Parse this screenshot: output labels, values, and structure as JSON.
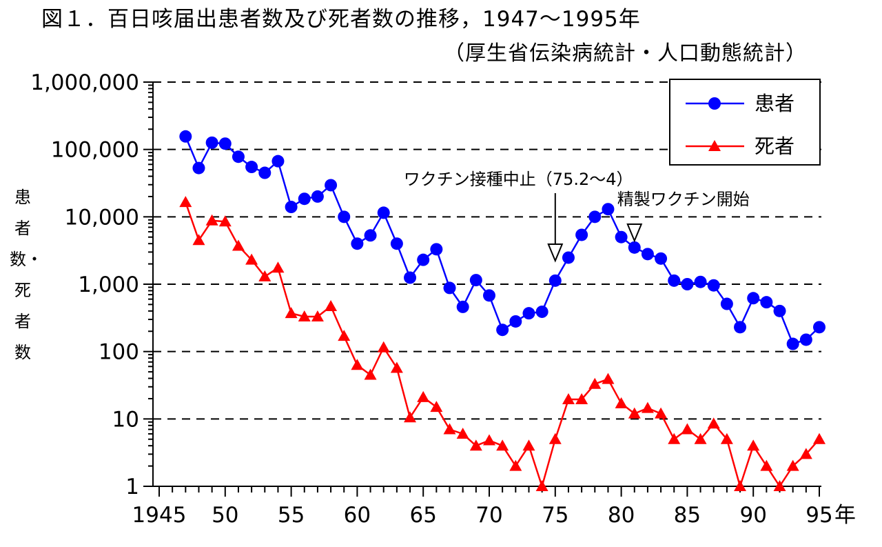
{
  "title": "図１．百日咳届出患者数及び死者数の推移，1947～1995年",
  "source": "（厚生省伝染病統計・人口動態統計）",
  "chart_data": {
    "type": "line",
    "title": "図１．百日咳届出患者数及び死者数の推移，1947～1995年",
    "subtitle": "（厚生省伝染病統計・人口動態統計）",
    "ylabel": "患者数・死者数",
    "yscale": "log",
    "ylim": [
      1,
      1000000
    ],
    "xlim": [
      1945,
      1995
    ],
    "x_unit": "年",
    "x_tick_labels": [
      {
        "x": 1945,
        "label": "1945"
      },
      {
        "x": 1950,
        "label": "50"
      },
      {
        "x": 1955,
        "label": "55"
      },
      {
        "x": 1960,
        "label": "60"
      },
      {
        "x": 1965,
        "label": "65"
      },
      {
        "x": 1970,
        "label": "70"
      },
      {
        "x": 1975,
        "label": "75"
      },
      {
        "x": 1980,
        "label": "80"
      },
      {
        "x": 1985,
        "label": "85"
      },
      {
        "x": 1990,
        "label": "90"
      },
      {
        "x": 1995,
        "label": "95"
      }
    ],
    "y_tick_labels": [
      {
        "y": 1,
        "label": "1"
      },
      {
        "y": 10,
        "label": "10"
      },
      {
        "y": 100,
        "label": "100"
      },
      {
        "y": 1000,
        "label": "1,000"
      },
      {
        "y": 10000,
        "label": "10,000"
      },
      {
        "y": 100000,
        "label": "100,000"
      },
      {
        "y": 1000000,
        "label": "1,000,000"
      }
    ],
    "grid": true,
    "legend_position": "top-right",
    "x": [
      1947,
      1948,
      1949,
      1950,
      1951,
      1952,
      1953,
      1954,
      1955,
      1956,
      1957,
      1958,
      1959,
      1960,
      1961,
      1962,
      1963,
      1964,
      1965,
      1966,
      1967,
      1968,
      1969,
      1970,
      1971,
      1972,
      1973,
      1974,
      1975,
      1976,
      1977,
      1978,
      1979,
      1980,
      1981,
      1982,
      1983,
      1984,
      1985,
      1986,
      1987,
      1988,
      1989,
      1990,
      1991,
      1992,
      1993,
      1994,
      1995
    ],
    "series": [
      {
        "name": "患者",
        "color": "#0000ff",
        "marker": "circle",
        "values": [
          156000,
          53000,
          126000,
          122000,
          78000,
          55000,
          45000,
          67000,
          14000,
          18500,
          20000,
          29500,
          10000,
          4000,
          5300,
          11500,
          4000,
          1250,
          2300,
          3300,
          880,
          460,
          1150,
          680,
          210,
          280,
          370,
          390,
          1130,
          2480,
          5400,
          10000,
          13000,
          5000,
          3500,
          2800,
          2400,
          1130,
          1000,
          1080,
          960,
          510,
          230,
          620,
          540,
          400,
          130,
          150,
          230
        ]
      },
      {
        "name": "死者",
        "color": "#ff0000",
        "marker": "triangle",
        "values": [
          16500,
          4500,
          8800,
          8500,
          3700,
          2300,
          1300,
          1750,
          370,
          330,
          330,
          470,
          170,
          63,
          45,
          115,
          57,
          10.5,
          21,
          15,
          7,
          6,
          4,
          4.8,
          4,
          2,
          4,
          0.9,
          5,
          19.5,
          19.5,
          33,
          39,
          17,
          12,
          14.5,
          12,
          5,
          7,
          5,
          8.5,
          5,
          1,
          4,
          2,
          1,
          2,
          3,
          5
        ]
      }
    ],
    "annotations": [
      {
        "text": "ワクチン接種中止（75.2～4）",
        "x": 1975
      },
      {
        "text": "精製ワクチン開始",
        "x": 1981
      }
    ]
  }
}
